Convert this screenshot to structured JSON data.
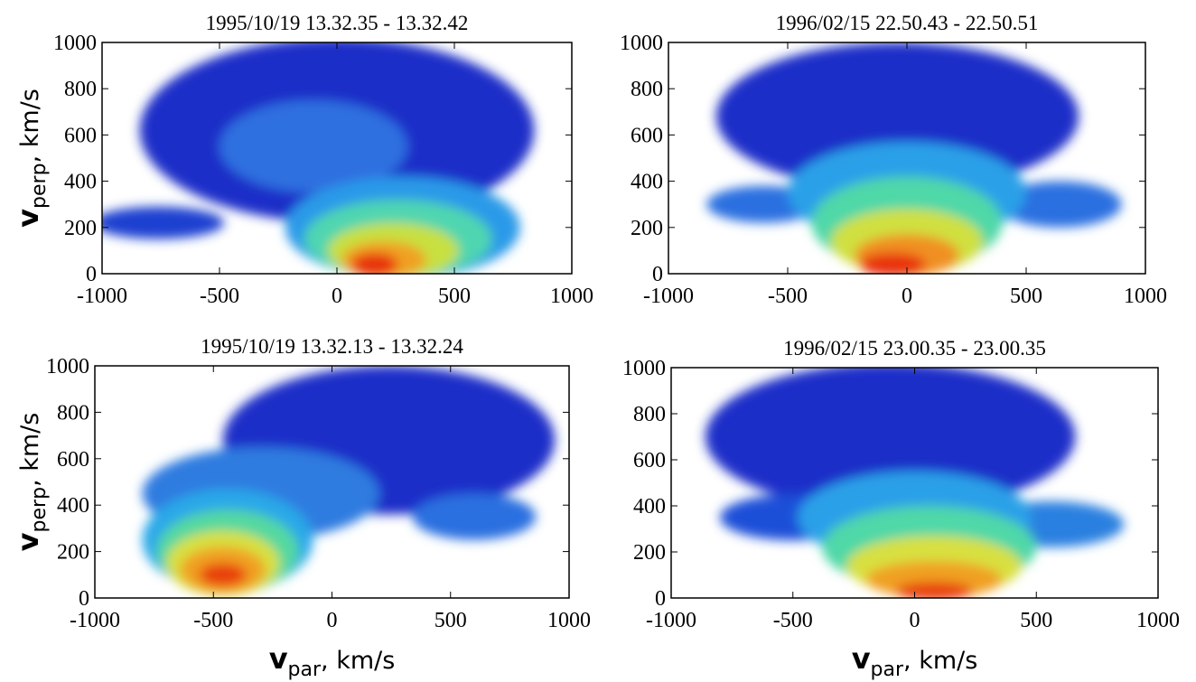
{
  "chart_data": [
    {
      "type": "heatmap",
      "title": "1995/10/19 13.32.35 - 13.32.42",
      "ylabel": {
        "main": "v",
        "sub": "perp",
        "unit": ", km/s"
      },
      "xlim": [
        -1000,
        1000
      ],
      "ylim": [
        0,
        1000
      ],
      "xticks": [
        -1000,
        -500,
        0,
        500,
        1000
      ],
      "yticks": [
        0,
        200,
        400,
        600,
        800,
        1000
      ]
    },
    {
      "type": "heatmap",
      "title": "1996/02/15 22.50.43 - 22.50.51",
      "xlim": [
        -1000,
        1000
      ],
      "ylim": [
        0,
        1000
      ],
      "xticks": [
        -1000,
        -500,
        0,
        500,
        1000
      ],
      "yticks": [
        0,
        200,
        400,
        600,
        800,
        1000
      ]
    },
    {
      "type": "heatmap",
      "title": "1995/10/19 13.32.13 - 13.32.24",
      "ylabel": {
        "main": "v",
        "sub": "perp",
        "unit": ", km/s"
      },
      "xlabel": {
        "main": "v",
        "sub": "par",
        "unit": ", km/s"
      },
      "xlim": [
        -1000,
        1000
      ],
      "ylim": [
        0,
        1000
      ],
      "xticks": [
        -1000,
        -500,
        0,
        500,
        1000
      ],
      "yticks": [
        0,
        200,
        400,
        600,
        800,
        1000
      ]
    },
    {
      "type": "heatmap",
      "title": "1996/02/15 23.00.35 - 23.00.35",
      "xlabel": {
        "main": "v",
        "sub": "par",
        "unit": ", km/s"
      },
      "xlim": [
        -1000,
        1000
      ],
      "ylim": [
        0,
        1000
      ],
      "xticks": [
        -1000,
        -500,
        0,
        500,
        1000
      ],
      "yticks": [
        0,
        200,
        400,
        600,
        800,
        1000
      ]
    }
  ]
}
